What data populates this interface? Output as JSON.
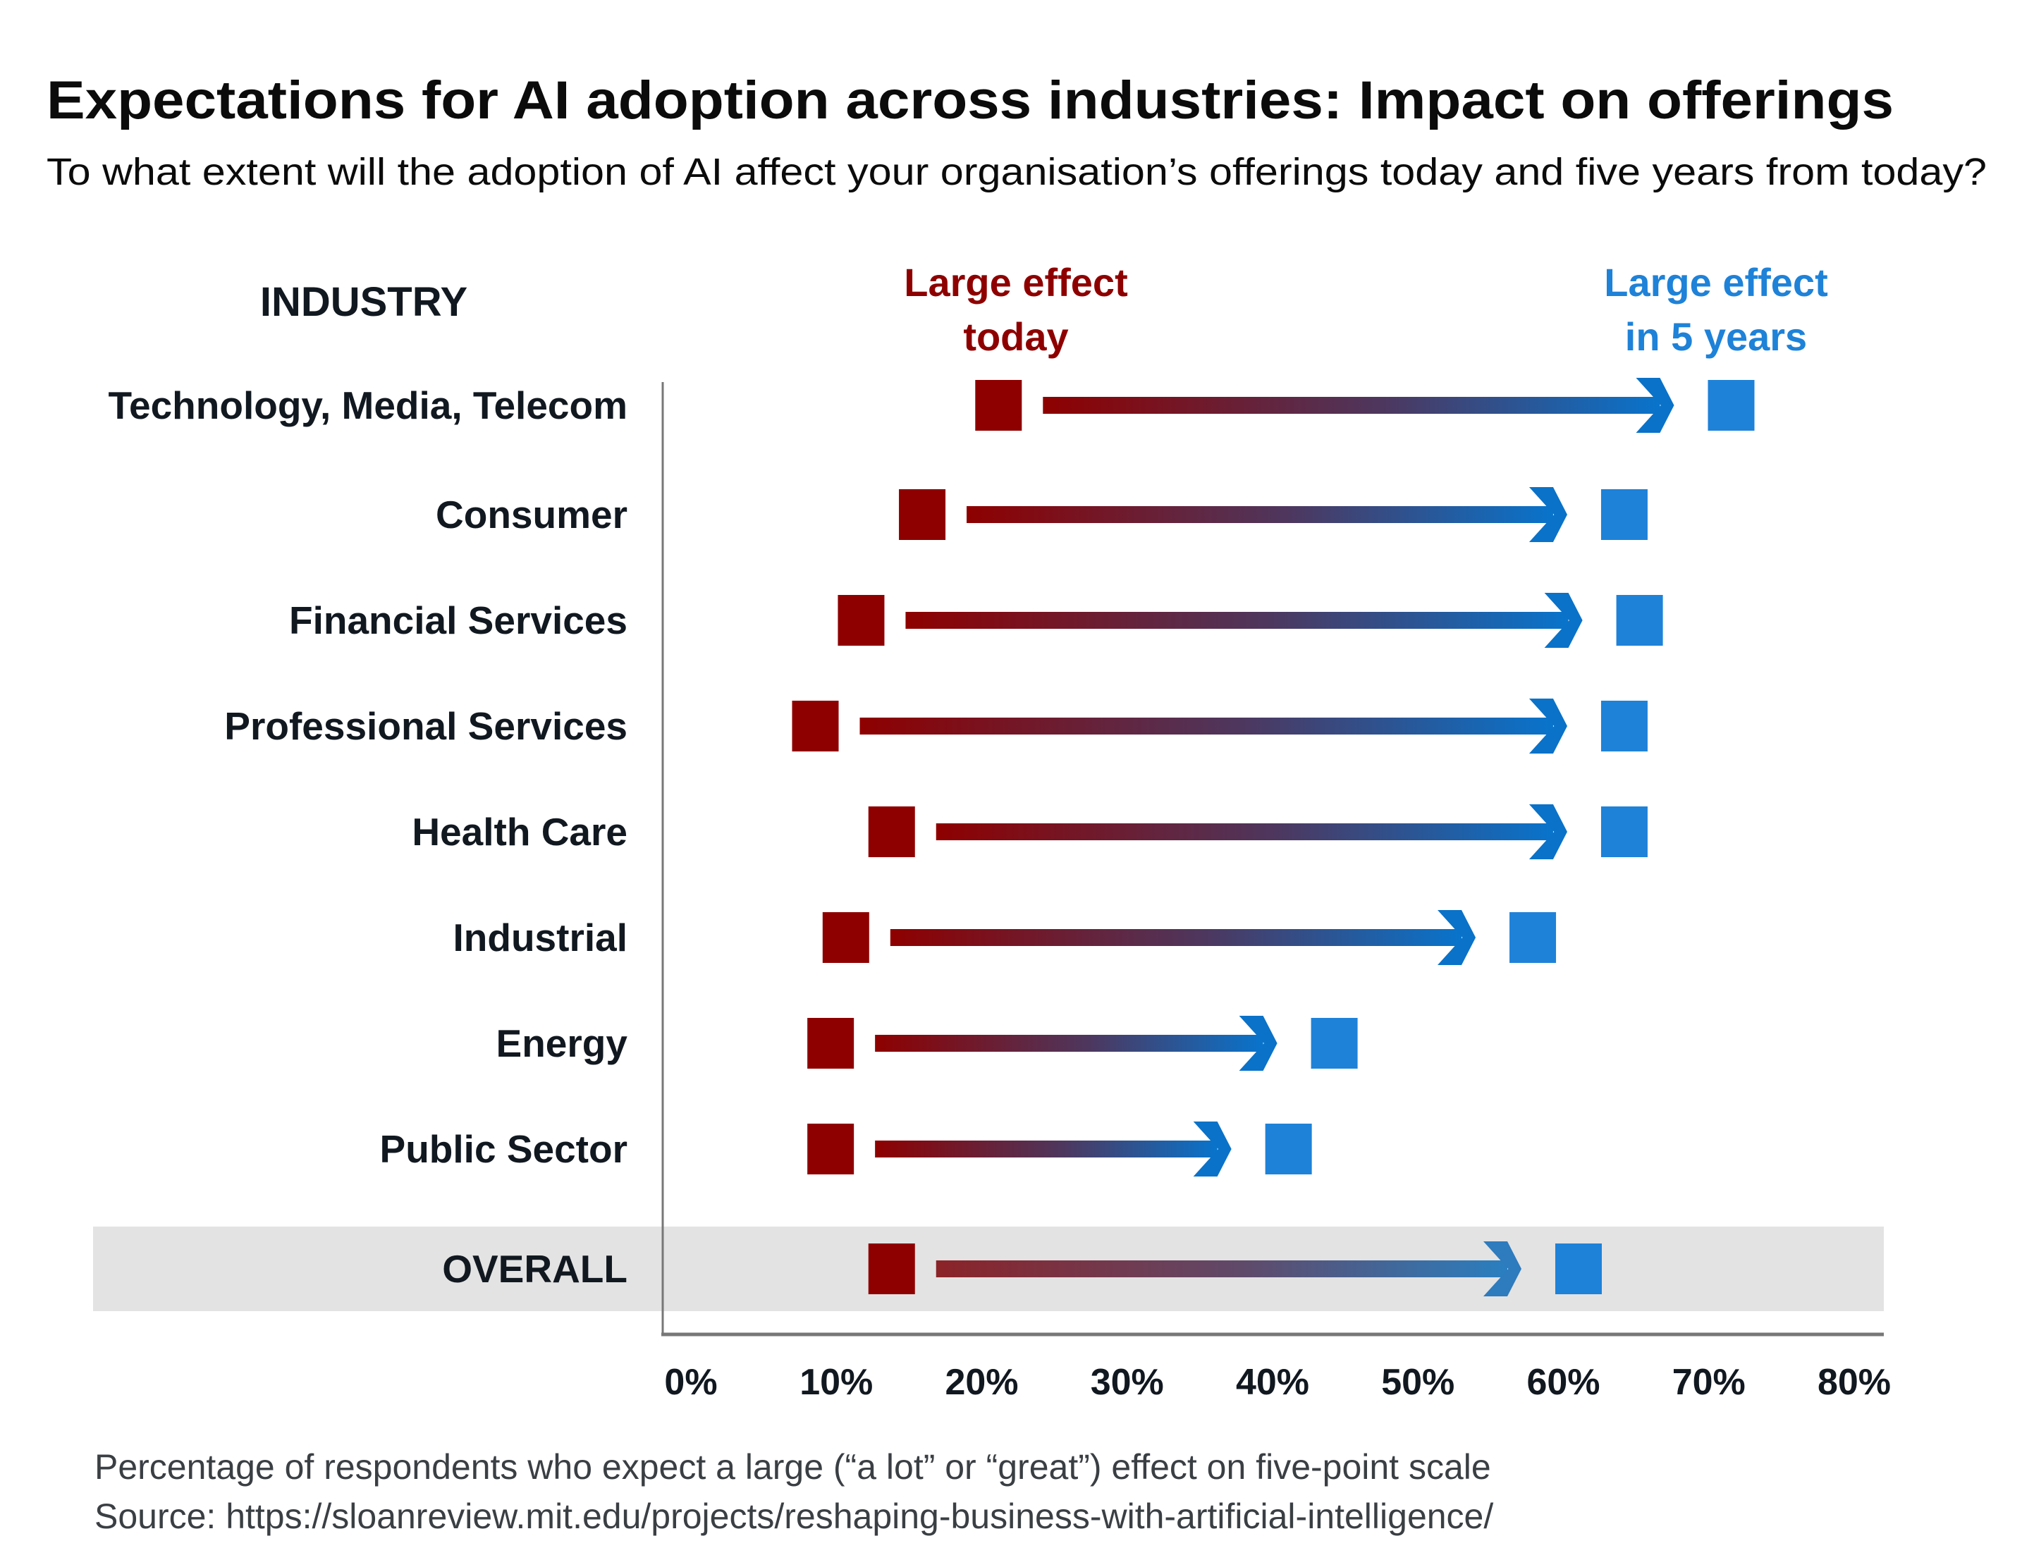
{
  "chart_data": {
    "type": "dumbbell-arrow",
    "title": "Expectations for AI adoption across industries: Impact on offerings",
    "subtitle": "To what extent will the adoption of AI affect your organisation’s offerings today and five years from today?",
    "category_header": "INDUSTRY",
    "xlabel": "",
    "xlim": [
      0,
      80
    ],
    "x_ticks": [
      "0%",
      "10%",
      "20%",
      "30%",
      "40%",
      "50%",
      "60%",
      "70%",
      "80%"
    ],
    "series": [
      {
        "name": "Large effect today",
        "label_lines": [
          "Large effect",
          "today"
        ],
        "color": "#8e0000"
      },
      {
        "name": "Large effect in 5 years",
        "label_lines": [
          "Large effect",
          "in 5 years"
        ],
        "color": "#1e82d8"
      }
    ],
    "categories": [
      "Technology, Media, Telecom",
      "Consumer",
      "Financial Services",
      "Professional Services",
      "Health Care",
      "Industrial",
      "Energy",
      "Public Sector",
      "OVERALL"
    ],
    "values_today": [
      22,
      17,
      13,
      10,
      15,
      12,
      11,
      11,
      15
    ],
    "values_5_years": [
      70,
      63,
      64,
      63,
      63,
      57,
      44,
      41,
      60
    ],
    "highlighted_category": "OVERALL",
    "grid": false,
    "legend_position": "top",
    "footnote": "Percentage of respondents who expect a large (“a lot” or “great”) effect on  five-point scale",
    "source": "Source: https://sloanreview.mit.edu/projects/reshaping-business-with-artificial-intelligence/"
  },
  "colors": {
    "today": "#8e0000",
    "five_years": "#1e82d8",
    "arrow_start": "#8e0000",
    "arrow_end": "#0874cc",
    "overall_band": "#e3e3e3",
    "axis": "#777777"
  }
}
